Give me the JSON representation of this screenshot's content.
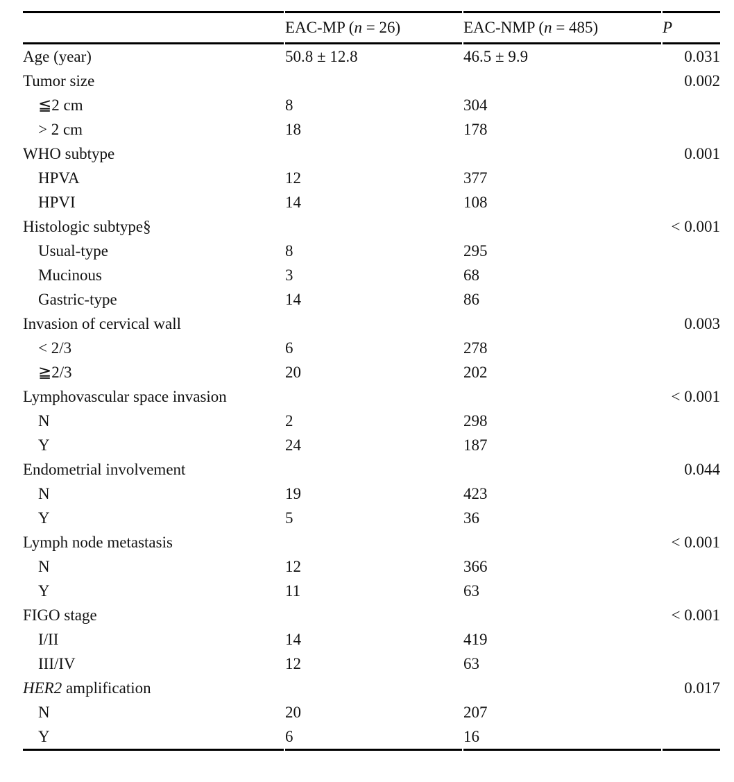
{
  "page": {
    "background": "#ffffff",
    "text_color": "#121212",
    "rule_color": "#000000"
  },
  "table": {
    "header": {
      "empty": "",
      "mp": {
        "pre": "EAC-MP (",
        "n": "n",
        "post": " = 26)"
      },
      "nmp": {
        "pre": "EAC-NMP (",
        "n": "n",
        "post": " = 485)"
      },
      "p": "P"
    },
    "rows": [
      {
        "label": "Age (year)",
        "mp": "50.8 ± 12.8",
        "nmp": "46.5 ± 9.9",
        "p": "0.031"
      },
      {
        "label": "Tumor size",
        "p": "0.002"
      },
      {
        "label": "≦2 cm",
        "mp": "8",
        "nmp": "304"
      },
      {
        "label": "> 2 cm",
        "mp": "18",
        "nmp": "178"
      },
      {
        "label": "WHO subtype",
        "p": "0.001"
      },
      {
        "label": "HPVA",
        "mp": "12",
        "nmp": "377"
      },
      {
        "label": "HPVI",
        "mp": "14",
        "nmp": "108"
      },
      {
        "label": "Histologic subtype§",
        "p": "< 0.001"
      },
      {
        "label": "Usual-type",
        "mp": "8",
        "nmp": "295"
      },
      {
        "label": "Mucinous",
        "mp": "3",
        "nmp": "68"
      },
      {
        "label": "Gastric-type",
        "mp": "14",
        "nmp": "86"
      },
      {
        "label": "Invasion of cervical wall",
        "p": "0.003"
      },
      {
        "label": "< 2/3",
        "mp": "6",
        "nmp": "278"
      },
      {
        "label": "≧2/3",
        "mp": "20",
        "nmp": "202"
      },
      {
        "label": "Lymphovascular space invasion",
        "p": "< 0.001"
      },
      {
        "label": "N",
        "mp": "2",
        "nmp": "298"
      },
      {
        "label": "Y",
        "mp": "24",
        "nmp": "187"
      },
      {
        "label": "Endometrial involvement",
        "p": "0.044"
      },
      {
        "label": "N",
        "mp": "19",
        "nmp": "423"
      },
      {
        "label": "Y",
        "mp": "5",
        "nmp": "36"
      },
      {
        "label": "Lymph node metastasis",
        "p": "< 0.001"
      },
      {
        "label": "N",
        "mp": "12",
        "nmp": "366"
      },
      {
        "label": "Y",
        "mp": "11",
        "nmp": "63"
      },
      {
        "label": "FIGO stage",
        "p": "< 0.001"
      },
      {
        "label": "I/II",
        "mp": "14",
        "nmp": "419"
      },
      {
        "label": "III/IV",
        "mp": "12",
        "nmp": "63"
      },
      {
        "label_italic": "HER2",
        "label": " amplification",
        "p": "0.017"
      },
      {
        "label": "N",
        "mp": "20",
        "nmp": "207"
      },
      {
        "label": "Y",
        "mp": "6",
        "nmp": "16"
      }
    ]
  }
}
